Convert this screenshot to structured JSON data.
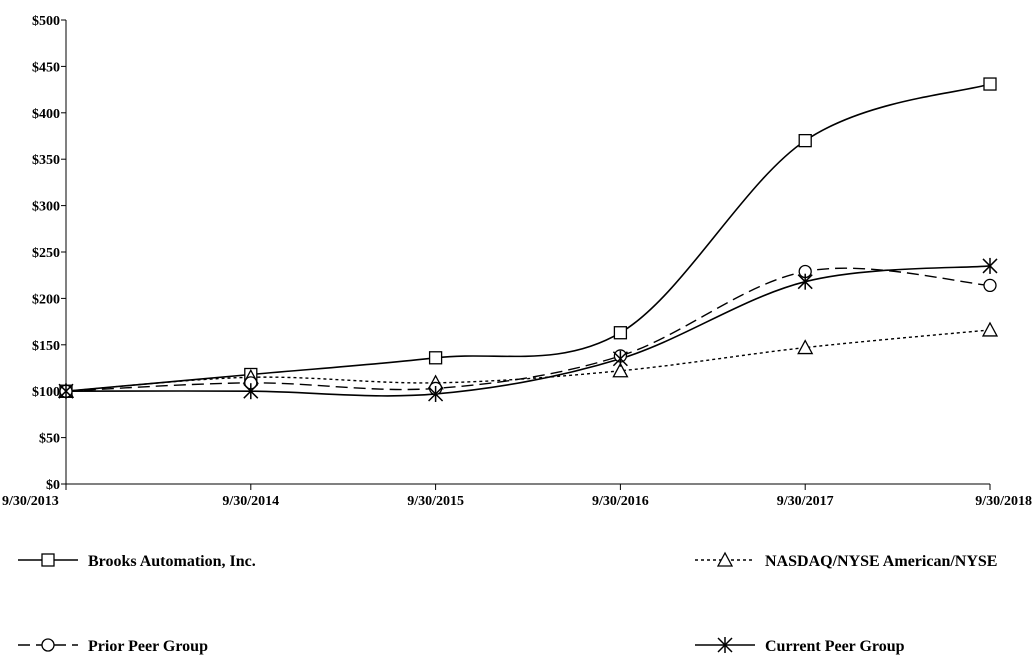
{
  "chart_data": {
    "type": "line",
    "categories": [
      "9/30/2013",
      "9/30/2014",
      "9/30/2015",
      "9/30/2016",
      "9/30/2017",
      "9/30/2018"
    ],
    "y_ticks": [
      "$0",
      "$50",
      "$100",
      "$150",
      "$200",
      "$250",
      "$300",
      "$350",
      "$400",
      "$450",
      "$500"
    ],
    "ylim": [
      0,
      500
    ],
    "grid": false,
    "legend_position": "bottom",
    "series": [
      {
        "name": "Brooks Automation, Inc.",
        "marker": "square",
        "line_style": "solid",
        "color": "#000000",
        "values": [
          100,
          118,
          136,
          163,
          370,
          431
        ]
      },
      {
        "name": "NASDAQ/NYSE American/NYSE",
        "marker": "triangle",
        "line_style": "dotted",
        "color": "#000000",
        "values": [
          100,
          115,
          109,
          122,
          147,
          166
        ]
      },
      {
        "name": "Prior Peer Group",
        "marker": "circle",
        "line_style": "dashed",
        "color": "#000000",
        "values": [
          100,
          109,
          103,
          138,
          229,
          214
        ]
      },
      {
        "name": "Current Peer Group",
        "marker": "asterisk",
        "line_style": "solid",
        "color": "#000000",
        "values": [
          100,
          100,
          97,
          135,
          218,
          235
        ]
      }
    ]
  }
}
